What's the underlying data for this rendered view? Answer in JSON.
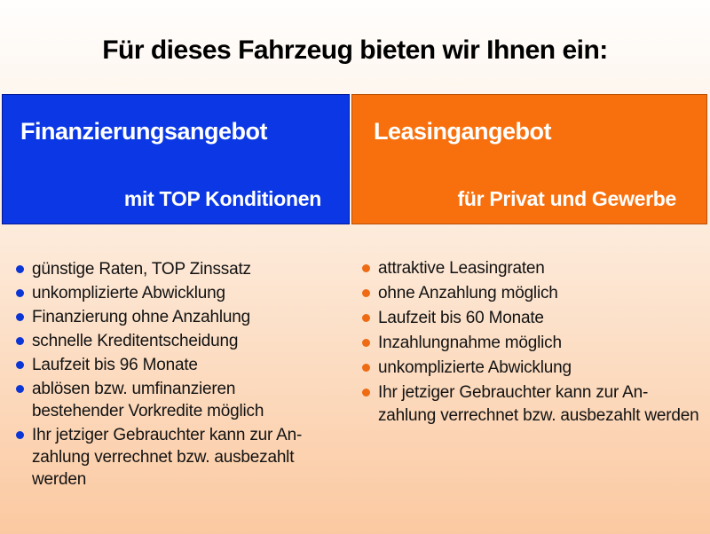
{
  "slide": {
    "title": "Für dieses Fahrzeug bieten wir Ihnen ein:"
  },
  "theme": {
    "background_top": "#fffefd",
    "background_bottom": "#fbc9a1",
    "finance_color": "#0b38e4",
    "finance_bullet_color": "#0c35d6",
    "leasing_color": "#f8700d",
    "leasing_bullet_color": "#ee6b14",
    "header_text_color": "#ffffff",
    "body_text_color": "#121212"
  },
  "panels": [
    {
      "heading": "Finanzierungsangebot",
      "subheading": "mit TOP Konditionen",
      "items": [
        "günstige Raten, TOP Zinssatz",
        "unkomplizierte Abwicklung",
        "Finanzierung ohne Anzahlung",
        "schnelle Kreditentscheidung",
        "Laufzeit bis 96 Monate",
        "ablösen bzw. umfinanzieren\nbestehender Vorkredite möglich",
        "Ihr jetziger Gebrauchter kann zur An-\nzahlung verrechnet bzw. ausbezahlt werden"
      ]
    },
    {
      "heading": "Leasingangebot",
      "subheading": "für Privat und Gewerbe",
      "items": [
        "attraktive Leasingraten",
        "ohne Anzahlung möglich",
        "Laufzeit bis 60 Monate",
        "Inzahlungnahme möglich",
        "unkomplizierte Abwicklung",
        "Ihr jetziger Gebrauchter kann zur An-\nzahlung verrechnet bzw. ausbezahlt werden"
      ]
    }
  ]
}
